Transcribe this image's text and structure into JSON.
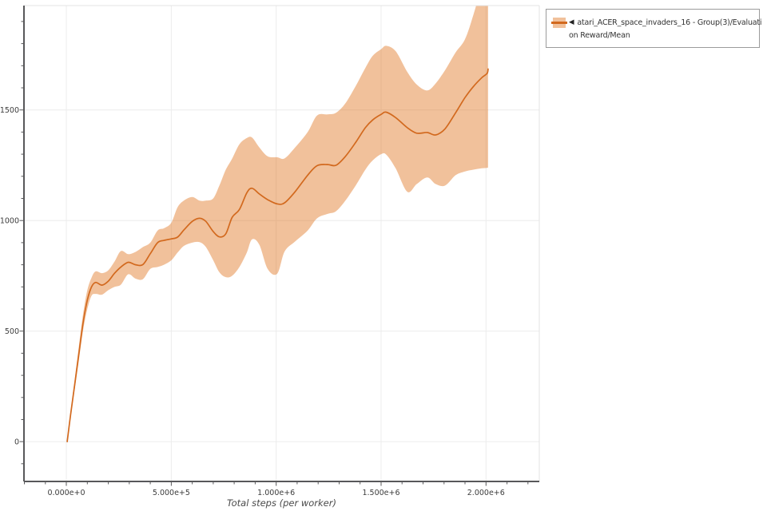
{
  "legend": {
    "collapse_icon": "◀",
    "label_line1": "atari_ACER_space_invaders_16 - Group(3)/Evaluati",
    "label_line2": "on Reward/Mean",
    "full_label": "atari_ACER_space_invaders_16 - Group(3)/Evaluation Reward/Mean"
  },
  "style": {
    "line_color": "#d2691e",
    "band_color": "rgba(224,118,34,0.45)",
    "axis_color": "#58585a",
    "frame_color": "#e3e3e3",
    "grid_color": "#ececec",
    "tick_label_color": "#3c3c3c",
    "background": "#ffffff"
  },
  "chart_data": {
    "type": "line",
    "title": "",
    "xlabel": "Total steps (per worker)",
    "ylabel": "",
    "grid": true,
    "legend_position": "top-right",
    "xlim": [
      -202000,
      2254000
    ],
    "ylim": [
      -180,
      1972
    ],
    "x_ticks": {
      "values": [
        0,
        500000,
        1000000,
        1500000,
        2000000
      ],
      "labels": [
        "0.000e+0",
        "5.000e+5",
        "1.000e+6",
        "1.500e+6",
        "2.000e+6"
      ],
      "minor_step": 100000
    },
    "y_ticks": {
      "values": [
        0,
        500,
        1000,
        1500
      ],
      "labels": [
        "0",
        "500",
        "1000",
        "1500"
      ],
      "minor_step": 100
    },
    "series": [
      {
        "name": "atari_ACER_space_invaders_16 - Group(3)/Evaluation Reward/Mean",
        "x": [
          4000,
          20000,
          40000,
          60000,
          80000,
          100000,
          120000,
          140000,
          170000,
          200000,
          230000,
          260000,
          295000,
          330000,
          365000,
          400000,
          435000,
          465000,
          500000,
          530000,
          560000,
          600000,
          635000,
          665000,
          700000,
          730000,
          760000,
          790000,
          825000,
          860000,
          885000,
          920000,
          960000,
          1005000,
          1040000,
          1090000,
          1150000,
          1195000,
          1245000,
          1285000,
          1330000,
          1380000,
          1425000,
          1460000,
          1500000,
          1525000,
          1570000,
          1625000,
          1670000,
          1720000,
          1760000,
          1805000,
          1855000,
          1900000,
          1940000,
          1980000,
          2005000,
          2010000
        ],
        "mean": [
          0,
          120,
          260,
          400,
          540,
          640,
          700,
          720,
          708,
          726,
          762,
          790,
          811,
          800,
          801,
          850,
          900,
          910,
          917,
          925,
          957,
          996,
          1010,
          996,
          950,
          926,
          940,
          1014,
          1050,
          1125,
          1146,
          1120,
          1094,
          1075,
          1080,
          1130,
          1205,
          1248,
          1253,
          1250,
          1290,
          1355,
          1420,
          1455,
          1480,
          1490,
          1465,
          1420,
          1395,
          1398,
          1387,
          1415,
          1487,
          1556,
          1606,
          1646,
          1665,
          1685
        ],
        "lower": [
          0,
          112,
          240,
          370,
          505,
          600,
          660,
          668,
          665,
          685,
          700,
          710,
          757,
          737,
          735,
          781,
          790,
          800,
          820,
          855,
          885,
          900,
          902,
          880,
          820,
          765,
          744,
          750,
          790,
          855,
          915,
          890,
          780,
          760,
          860,
          905,
          955,
          1010,
          1030,
          1042,
          1090,
          1160,
          1230,
          1272,
          1300,
          1298,
          1235,
          1130,
          1165,
          1195,
          1165,
          1158,
          1205,
          1222,
          1230,
          1236,
          1238,
          1240
        ],
        "upper": [
          0,
          132,
          285,
          435,
          580,
          685,
          742,
          770,
          762,
          775,
          815,
          862,
          848,
          858,
          880,
          900,
          955,
          965,
          990,
          1060,
          1090,
          1106,
          1090,
          1090,
          1100,
          1160,
          1230,
          1280,
          1345,
          1373,
          1375,
          1330,
          1290,
          1286,
          1281,
          1330,
          1400,
          1475,
          1480,
          1487,
          1530,
          1610,
          1690,
          1745,
          1775,
          1790,
          1765,
          1672,
          1615,
          1588,
          1620,
          1680,
          1760,
          1820,
          1930,
          2060,
          2100,
          2100
        ]
      }
    ]
  }
}
